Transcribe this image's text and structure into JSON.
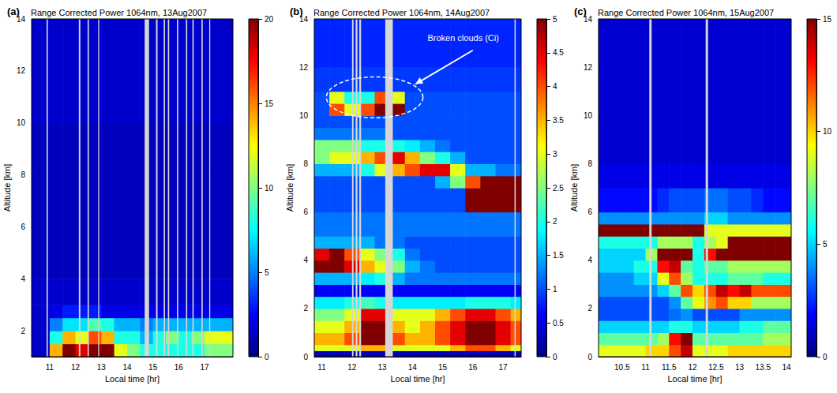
{
  "chart_data": [
    {
      "type": "heatmap",
      "letter": "(a)",
      "title": "Range Corrected Power 1064nm, 13Aug2007",
      "x_label": "Local time [hr]",
      "y_label": "Altitude [km]",
      "xlim": [
        10.3,
        18.1
      ],
      "xticks": [
        11,
        12,
        13,
        14,
        15,
        16,
        17
      ],
      "ylim": [
        1,
        14
      ],
      "yticks": [
        2,
        4,
        6,
        8,
        10,
        12,
        14
      ],
      "x_edges": [
        10.3,
        11,
        11.5,
        12,
        12.5,
        13,
        13.5,
        14,
        14.5,
        15,
        15.5,
        16,
        16.5,
        17,
        17.5,
        18.1
      ],
      "y_edges": [
        1,
        1.5,
        2,
        2.5,
        3,
        4,
        8,
        10,
        14
      ],
      "cells": [
        [
          1.5,
          14,
          20,
          18,
          20,
          20,
          12,
          10,
          8,
          8,
          8,
          8,
          8,
          10,
          10
        ],
        [
          1.5,
          8,
          14,
          12,
          16,
          14,
          8,
          8,
          6,
          8,
          10,
          8,
          10,
          12,
          12
        ],
        [
          1.5,
          5,
          7,
          7,
          9,
          8,
          6,
          6,
          5,
          6,
          6,
          6,
          6,
          6,
          6
        ],
        [
          1.5,
          2,
          3,
          3,
          3,
          2,
          2,
          2,
          2,
          2,
          2,
          2,
          2,
          2,
          2
        ],
        [
          1.5,
          1.5,
          1.5,
          1.5,
          1.5,
          1.5,
          1.5,
          1.5,
          1.5,
          1.5,
          1.5,
          1.5,
          1.5,
          1.5,
          1.5
        ],
        [
          1.2,
          1.2,
          1.2,
          1.2,
          1.2,
          1.2,
          1.2,
          1.2,
          1.2,
          1.2,
          1.2,
          1.2,
          1.2,
          1.2,
          1.2
        ],
        [
          1.2,
          1.2,
          1.2,
          1.2,
          1.2,
          1.2,
          1.2,
          1.2,
          1.2,
          1.2,
          1.2,
          1.2,
          1.2,
          1.2,
          1.2
        ],
        [
          1.5,
          1.5,
          1.5,
          1.5,
          1.5,
          1.5,
          1.5,
          1.5,
          1.5,
          1.5,
          1.5,
          1.5,
          1.5,
          1.5,
          1.5
        ]
      ],
      "gaps": [
        [
          10.88,
          10.93
        ],
        [
          12.13,
          12.19
        ],
        [
          12.47,
          12.52
        ],
        [
          12.88,
          12.92
        ],
        [
          14.68,
          14.85
        ],
        [
          15.12,
          15.18
        ],
        [
          15.42,
          15.47
        ],
        [
          15.58,
          15.63
        ],
        [
          15.93,
          15.98
        ],
        [
          16.28,
          16.33
        ],
        [
          16.53,
          16.58
        ],
        [
          16.88,
          16.93
        ],
        [
          17.18,
          17.22
        ]
      ],
      "colorbar": {
        "range": [
          0,
          20
        ],
        "ticks": [
          0,
          5,
          10,
          15,
          20
        ]
      }
    },
    {
      "type": "heatmap",
      "letter": "(b)",
      "title": "Range Corrected Power 1064nm, 14Aug2007",
      "x_label": "Local time [hr]",
      "y_label": "Altitude [km]",
      "xlim": [
        10.75,
        17.6
      ],
      "xticks": [
        11,
        12,
        13,
        14,
        15,
        16,
        17
      ],
      "ylim": [
        0,
        14
      ],
      "yticks": [
        0,
        2,
        4,
        6,
        8,
        10,
        12,
        14
      ],
      "x_edges": [
        10.75,
        11.25,
        11.75,
        12.25,
        12.75,
        13.25,
        13.75,
        14.25,
        14.75,
        15.25,
        15.75,
        16.25,
        16.75,
        17.25,
        17.6
      ],
      "y_edges": [
        0,
        0.25,
        0.5,
        1,
        1.5,
        2,
        2.5,
        3,
        3.5,
        4,
        4.5,
        5,
        6,
        6.5,
        7,
        7.5,
        8,
        8.5,
        9,
        9.5,
        10,
        10.5,
        11,
        12,
        14
      ],
      "cells": [
        [
          0.3,
          0.3,
          0.3,
          0.3,
          0.3,
          0.3,
          0.3,
          0.3,
          0.3,
          0.3,
          0.3,
          0.3,
          0.3,
          0.3
        ],
        [
          3,
          3,
          3,
          3.5,
          3.5,
          3,
          3,
          3,
          3,
          3.5,
          4,
          4,
          3.5,
          3
        ],
        [
          3.5,
          3.5,
          4,
          5,
          5,
          4,
          3.5,
          3.5,
          4,
          4.5,
          5,
          5,
          4.5,
          4
        ],
        [
          3,
          3,
          3.5,
          5,
          5,
          3.5,
          3,
          3.5,
          4,
          4.5,
          5,
          5,
          4.5,
          4
        ],
        [
          2.5,
          2.5,
          3,
          4.5,
          4.5,
          3,
          3,
          3,
          3.5,
          4,
          4.5,
          4.5,
          4,
          3.5
        ],
        [
          1.8,
          1.8,
          2,
          2.2,
          2,
          1.8,
          1.8,
          1.8,
          1.8,
          1.8,
          2,
          2,
          2,
          1.8
        ],
        [
          0.6,
          0.6,
          0.6,
          0.6,
          0.6,
          0.6,
          0.6,
          0.6,
          0.6,
          0.6,
          0.6,
          0.6,
          0.6,
          0.6
        ],
        [
          1.5,
          1.5,
          1.5,
          1.8,
          2,
          1.5,
          1.2,
          1.2,
          1.2,
          1.2,
          1.2,
          1.2,
          1.2,
          1.2
        ],
        [
          5,
          5,
          4.5,
          3.5,
          3,
          2.5,
          1.5,
          1.2,
          1,
          1,
          1,
          1,
          1,
          1
        ],
        [
          4.5,
          5,
          4,
          3,
          2.5,
          2,
          1.2,
          1,
          1,
          1,
          1,
          1,
          1,
          1
        ],
        [
          1.5,
          1.5,
          1.5,
          1.5,
          1.2,
          1.2,
          1,
          1,
          1,
          1,
          1,
          1,
          1,
          1
        ],
        [
          1.2,
          1.2,
          1.2,
          1.2,
          1.2,
          1.2,
          1.2,
          1.2,
          1.2,
          1.2,
          1.2,
          1.2,
          1.2,
          1.2
        ],
        [
          1,
          1,
          1,
          1,
          1,
          1,
          1,
          1,
          1,
          1,
          5,
          5,
          5,
          5
        ],
        [
          1,
          1,
          1,
          1,
          1,
          1,
          1,
          1,
          1,
          1,
          5,
          5,
          5,
          5
        ],
        [
          1,
          1,
          1,
          1,
          1,
          1,
          1,
          1,
          1.5,
          2.5,
          4,
          5,
          5,
          5
        ],
        [
          1.5,
          1.5,
          1.5,
          2,
          3,
          3.5,
          4,
          4.5,
          4.5,
          3,
          1.5,
          1.5,
          1.2,
          1.2
        ],
        [
          2.5,
          3,
          3,
          3.5,
          4,
          4.5,
          3.5,
          2.5,
          2,
          1.5,
          1,
          1,
          1,
          1
        ],
        [
          2.5,
          2.5,
          2.5,
          2,
          2,
          2,
          1.8,
          1.5,
          1.2,
          1,
          1,
          1,
          1,
          1
        ],
        [
          1.2,
          1.2,
          1.2,
          1.2,
          1.2,
          1,
          1,
          1,
          1,
          1,
          1,
          1,
          1,
          1
        ],
        [
          1,
          1,
          1,
          1,
          1,
          1,
          1,
          1,
          1,
          1,
          1,
          1,
          1,
          1
        ],
        [
          1,
          4,
          3,
          4,
          5,
          5,
          1,
          1,
          1,
          1,
          1,
          1,
          1,
          1
        ],
        [
          1,
          3,
          2,
          2,
          4,
          3,
          1,
          1,
          1,
          1,
          1,
          1,
          1,
          1
        ],
        [
          0.9,
          0.9,
          0.9,
          0.9,
          0.9,
          0.9,
          0.9,
          0.9,
          0.9,
          0.9,
          0.9,
          0.9,
          0.9,
          0.9
        ],
        [
          0.8,
          0.8,
          0.8,
          0.8,
          0.8,
          0.8,
          0.8,
          0.8,
          0.8,
          0.8,
          0.8,
          0.8,
          0.8,
          0.8
        ]
      ],
      "gaps": [
        [
          12.0,
          12.05
        ],
        [
          12.12,
          12.18
        ],
        [
          12.24,
          12.3
        ],
        [
          13.1,
          13.35
        ],
        [
          17.38,
          17.42
        ]
      ],
      "colorbar": {
        "range": [
          0,
          5
        ],
        "ticks": [
          0,
          0.5,
          1,
          1.5,
          2,
          2.5,
          3,
          3.5,
          4,
          4.5,
          5
        ]
      },
      "annotations": [
        {
          "text": "Broken clouds (Ci)",
          "x": 14.5,
          "y": 13.2,
          "arrow": {
            "from": [
              16.0,
              12.7
            ],
            "to": [
              14.1,
              11.3
            ]
          },
          "ellipse": {
            "x": [
              11.15,
              14.35
            ],
            "y": [
              9.9,
              11.6
            ]
          }
        }
      ]
    },
    {
      "type": "heatmap",
      "letter": "(c)",
      "title": "Range Corrected Power 1064nm, 15Aug2007",
      "x_label": "Local time [hr]",
      "y_label": "Altitude [km]",
      "xlim": [
        10,
        14.1
      ],
      "xticks": [
        10.5,
        11,
        11.5,
        12,
        12.5,
        13,
        13.5,
        14
      ],
      "ylim": [
        0,
        14
      ],
      "yticks": [
        0,
        2,
        4,
        6,
        8,
        10,
        12,
        14
      ],
      "x_edges": [
        10,
        10.5,
        10.75,
        11,
        11.25,
        11.5,
        11.75,
        12,
        12.25,
        12.5,
        12.75,
        13,
        13.25,
        13.5,
        13.75,
        14.1
      ],
      "y_edges": [
        0,
        0.5,
        1,
        1.5,
        2,
        2.5,
        3,
        3.5,
        4,
        4.5,
        5,
        5.5,
        6,
        7,
        8,
        14
      ],
      "cells": [
        [
          9,
          9,
          9,
          10,
          10,
          12,
          14,
          9,
          9,
          9,
          10,
          10,
          10,
          10,
          10
        ],
        [
          7,
          7,
          7,
          7,
          8,
          13,
          15,
          7,
          7,
          7,
          7,
          7,
          7,
          8,
          8
        ],
        [
          5,
          5,
          5,
          5,
          5,
          6,
          6,
          5,
          5,
          5,
          5,
          6,
          6,
          7,
          7
        ],
        [
          3,
          3,
          3,
          3,
          3,
          3.5,
          4,
          3,
          3,
          3,
          3,
          4,
          4,
          4,
          4
        ],
        [
          3,
          3,
          3,
          3,
          3,
          4,
          7,
          9,
          11,
          12,
          10,
          10,
          8,
          8,
          8
        ],
        [
          4,
          4,
          4,
          4,
          5,
          7,
          12,
          10,
          12,
          14,
          13,
          14,
          12,
          12,
          12
        ],
        [
          4,
          4,
          5,
          5,
          9,
          12,
          8,
          6,
          6,
          6,
          7,
          7,
          7,
          6,
          6
        ],
        [
          5,
          5,
          6,
          6,
          13,
          14,
          7,
          6,
          7,
          7,
          8,
          8,
          8,
          8,
          8
        ],
        [
          5,
          5,
          5,
          8,
          15,
          15,
          15,
          6,
          13,
          15,
          15,
          15,
          15,
          15,
          15
        ],
        [
          6,
          6,
          6,
          6,
          8,
          8,
          8,
          6,
          8,
          9,
          15,
          15,
          15,
          15,
          15
        ],
        [
          15,
          15,
          15,
          15,
          15,
          15,
          15,
          15,
          9,
          9,
          9,
          9,
          9,
          9,
          9
        ],
        [
          4,
          4,
          4,
          4,
          4,
          4,
          4,
          4,
          5,
          5,
          4,
          4,
          4,
          4,
          4
        ],
        [
          2,
          2,
          2,
          2,
          2.5,
          3,
          3,
          3,
          3.5,
          3.5,
          3,
          3,
          2.5,
          2,
          2
        ],
        [
          1.5,
          1.5,
          1.5,
          1.5,
          1.5,
          1.5,
          1.5,
          1.5,
          1.5,
          1.5,
          1.5,
          1.5,
          1.5,
          1.5,
          1.5
        ],
        [
          1.2,
          1.2,
          1.2,
          1.2,
          1.2,
          1.2,
          1.2,
          1.2,
          1.2,
          1.2,
          1.2,
          1.2,
          1.2,
          1.2,
          1.2
        ]
      ],
      "gaps": [
        [
          11.08,
          11.13
        ],
        [
          12.28,
          12.33
        ]
      ],
      "colorbar": {
        "range": [
          0,
          15
        ],
        "ticks": [
          0,
          5,
          10,
          15
        ]
      }
    }
  ]
}
